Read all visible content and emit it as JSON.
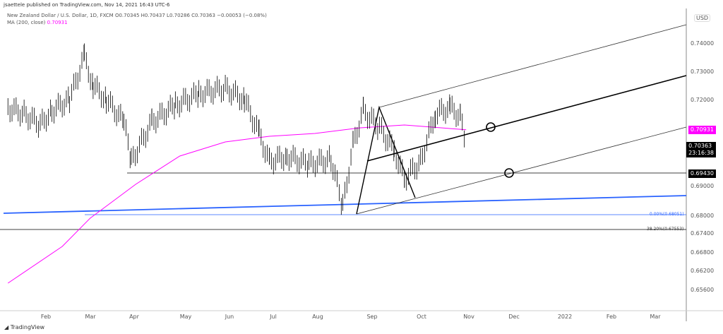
{
  "header": {
    "published": "jsaettele published on TradingView.com, Nov 14, 2021 16:43 UTC-6",
    "symbol_line": "New Zealand Dollar / U.S. Dollar, 1D, FXCM  O0.70345  H0.70437  L0.70286  C0.70363  −0.00053 (−0.08%)",
    "ma_label": "MA (200, close)",
    "ma_value": "0.70931"
  },
  "currency": "USD",
  "footer_logo": "TradingView",
  "colors": {
    "ma": "#ff00ff",
    "trend_blue": "#2962ff",
    "bars": "#000000"
  },
  "chart_data": {
    "type": "line",
    "title": "New Zealand Dollar / U.S. Dollar, 1D, FXCM",
    "x_ticks": [
      "Feb",
      "Mar",
      "Apr",
      "May",
      "Jun",
      "Jul",
      "Aug",
      "Sep",
      "Oct",
      "Nov",
      "Dec",
      "2022",
      "Feb",
      "Mar"
    ],
    "y_ticks": [
      "0.74000",
      "0.73000",
      "0.72000",
      "0.69000",
      "0.68000",
      "0.67400",
      "0.66800",
      "0.66200",
      "0.65600"
    ],
    "ylim": [
      0.652,
      0.75
    ],
    "series": [
      {
        "name": "price",
        "points": [
          [
            "2021-01-04",
            0.717
          ],
          [
            "2021-01-15",
            0.715
          ],
          [
            "2021-01-26",
            0.711
          ],
          [
            "2021-02-03",
            0.716
          ],
          [
            "2021-02-15",
            0.72
          ],
          [
            "2021-02-25",
            0.735
          ],
          [
            "2021-03-03",
            0.725
          ],
          [
            "2021-03-12",
            0.72
          ],
          [
            "2021-03-24",
            0.712
          ],
          [
            "2021-03-29",
            0.698
          ],
          [
            "2021-04-12",
            0.712
          ],
          [
            "2021-04-28",
            0.718
          ],
          [
            "2021-05-14",
            0.722
          ],
          [
            "2021-06-01",
            0.724
          ],
          [
            "2021-06-14",
            0.72
          ],
          [
            "2021-06-24",
            0.708
          ],
          [
            "2021-07-01",
            0.698
          ],
          [
            "2021-07-13",
            0.7
          ],
          [
            "2021-07-28",
            0.697
          ],
          [
            "2021-08-12",
            0.699
          ],
          [
            "2021-08-20",
            0.682
          ],
          [
            "2021-08-27",
            0.704
          ],
          [
            "2021-09-03",
            0.716
          ],
          [
            "2021-09-14",
            0.71
          ],
          [
            "2021-09-24",
            0.702
          ],
          [
            "2021-10-01",
            0.692
          ],
          [
            "2021-10-12",
            0.698
          ],
          [
            "2021-10-22",
            0.715
          ],
          [
            "2021-11-01",
            0.717
          ],
          [
            "2021-11-08",
            0.714
          ],
          [
            "2021-11-12",
            0.7036
          ]
        ]
      },
      {
        "name": "MA (200, close)",
        "points": [
          [
            "2021-01-04",
            0.655
          ],
          [
            "2021-02-10",
            0.668
          ],
          [
            "2021-03-01",
            0.678
          ],
          [
            "2021-04-01",
            0.69
          ],
          [
            "2021-05-01",
            0.7
          ],
          [
            "2021-06-01",
            0.705
          ],
          [
            "2021-07-01",
            0.707
          ],
          [
            "2021-08-01",
            0.708
          ],
          [
            "2021-09-01",
            0.71
          ],
          [
            "2021-10-01",
            0.711
          ],
          [
            "2021-11-12",
            0.7093
          ]
        ]
      }
    ],
    "price_labels": {
      "ma": "0.70931",
      "last": "0.70363",
      "countdown": "23:16:38",
      "level": "0.69430"
    },
    "fib_labels": [
      "0.00%(0.68051)",
      "38.20%(0.67553)"
    ]
  }
}
